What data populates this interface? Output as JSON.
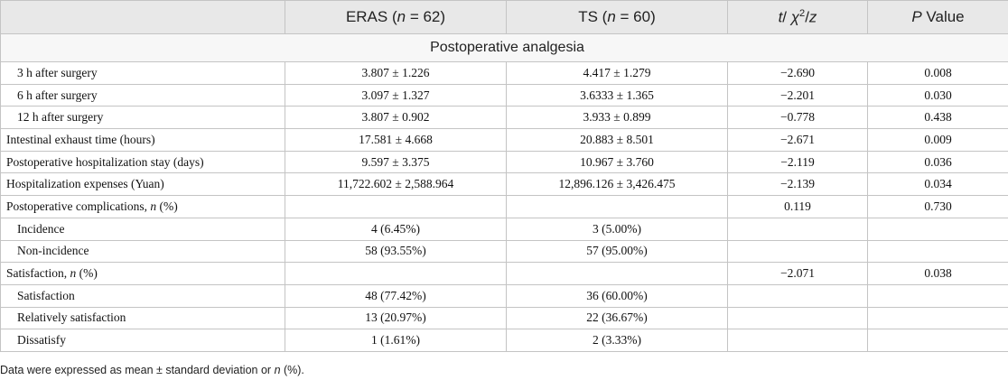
{
  "table": {
    "header": [
      null,
      [
        {
          "text": "ERAS ("
        },
        {
          "text": "n",
          "style": "i"
        },
        {
          "text": " = 62)"
        }
      ],
      [
        {
          "text": "TS ("
        },
        {
          "text": "n",
          "style": "i"
        },
        {
          "text": " = 60)"
        }
      ],
      [
        {
          "text": "t",
          "style": "i"
        },
        {
          "text": "/ "
        },
        {
          "text": "χ",
          "style": "i"
        },
        {
          "text": "2",
          "style": "sup"
        },
        {
          "text": "/"
        },
        {
          "text": "z",
          "style": "i"
        }
      ],
      [
        {
          "text": "P",
          "style": "i"
        },
        {
          "text": " Value"
        }
      ]
    ],
    "section": "Postoperative analgesia",
    "rows": [
      {
        "indent": true,
        "cells": [
          "3 h after surgery",
          "3.807 ± 1.226",
          "4.417 ± 1.279",
          "−2.690",
          "0.008"
        ]
      },
      {
        "indent": true,
        "cells": [
          "6 h after surgery",
          "3.097 ± 1.327",
          "3.6333 ± 1.365",
          "−2.201",
          "0.030"
        ]
      },
      {
        "indent": true,
        "cells": [
          "12 h after surgery",
          "3.807 ± 0.902",
          "3.933 ± 0.899",
          "−0.778",
          "0.438"
        ]
      },
      {
        "indent": false,
        "cells": [
          "Intestinal exhaust time (hours)",
          "17.581 ± 4.668",
          "20.883 ± 8.501",
          "−2.671",
          "0.009"
        ]
      },
      {
        "indent": false,
        "cells": [
          "Postoperative hospitalization stay (days)",
          "9.597 ± 3.375",
          "10.967 ± 3.760",
          "−2.119",
          "0.036"
        ]
      },
      {
        "indent": false,
        "cells": [
          "Hospitalization expenses (Yuan)",
          "11,722.602 ± 2,588.964",
          "12,896.126 ± 3,426.475",
          "−2.139",
          "0.034"
        ]
      },
      {
        "indent": false,
        "cells": [
          [
            {
              "text": "Postoperative complications, "
            },
            {
              "text": "n",
              "style": "i"
            },
            {
              "text": " (%)"
            }
          ],
          null,
          null,
          "0.119",
          "0.730"
        ]
      },
      {
        "indent": true,
        "cells": [
          "Incidence",
          "4 (6.45%)",
          "3 (5.00%)",
          null,
          null
        ]
      },
      {
        "indent": true,
        "cells": [
          "Non-incidence",
          "58 (93.55%)",
          "57 (95.00%)",
          null,
          null
        ]
      },
      {
        "indent": false,
        "cells": [
          [
            {
              "text": "Satisfaction, "
            },
            {
              "text": "n",
              "style": "i"
            },
            {
              "text": " (%)"
            }
          ],
          null,
          null,
          "−2.071",
          "0.038"
        ]
      },
      {
        "indent": true,
        "cells": [
          "Satisfaction",
          "48 (77.42%)",
          "36 (60.00%)",
          null,
          null
        ]
      },
      {
        "indent": true,
        "cells": [
          "Relatively satisfaction",
          "13 (20.97%)",
          "22 (36.67%)",
          null,
          null
        ]
      },
      {
        "indent": true,
        "cells": [
          "Dissatisfy",
          "1 (1.61%)",
          "2 (3.33%)",
          null,
          null
        ]
      }
    ],
    "note": [
      {
        "text": "Data were expressed as mean ± standard deviation or "
      },
      {
        "text": "n",
        "style": "i"
      },
      {
        "text": " (%)."
      }
    ]
  }
}
